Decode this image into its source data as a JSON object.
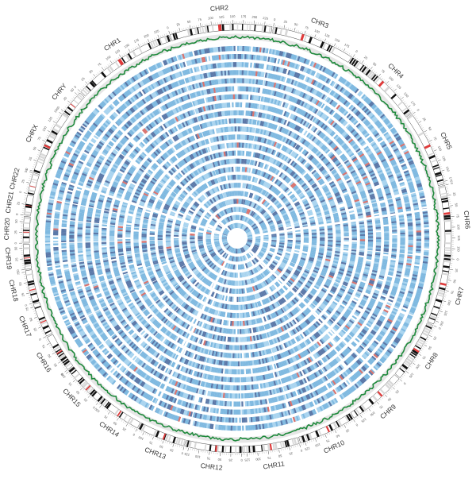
{
  "figure": {
    "type": "circos",
    "chromosomes": [
      {
        "name": "CHR1",
        "label": "CHR1",
        "size": 249,
        "ticks": [
          "0",
          "25",
          "50",
          "75",
          "100",
          "125",
          "150",
          "175",
          "200",
          "225"
        ]
      },
      {
        "name": "CHR2",
        "label": "CHR2",
        "size": 243,
        "ticks": [
          "0",
          "25",
          "50",
          "75",
          "100",
          "125",
          "150",
          "175",
          "200",
          "225"
        ]
      },
      {
        "name": "CHR3",
        "label": "CHR3",
        "size": 198,
        "ticks": [
          "0",
          "25",
          "50",
          "75",
          "100",
          "125",
          "150",
          "175"
        ]
      },
      {
        "name": "CHR4",
        "label": "CHR4",
        "size": 191,
        "ticks": [
          "0",
          "25",
          "50",
          "75",
          "100",
          "125",
          "150",
          "175"
        ]
      },
      {
        "name": "CHR5",
        "label": "CHR5",
        "size": 181,
        "ticks": [
          "0",
          "25",
          "50",
          "75",
          "100",
          "125",
          "150",
          "175"
        ]
      },
      {
        "name": "CHR6",
        "label": "CHR6",
        "size": 171,
        "ticks": [
          "0",
          "25",
          "50",
          "75",
          "100",
          "125",
          "150"
        ]
      },
      {
        "name": "CHR7",
        "label": "CHR7",
        "size": 159,
        "ticks": [
          "0",
          "25",
          "50",
          "75",
          "100",
          "125",
          "150"
        ]
      },
      {
        "name": "CHR8",
        "label": "CHR8",
        "size": 146,
        "ticks": [
          "0",
          "25",
          "50",
          "75",
          "100",
          "125"
        ]
      },
      {
        "name": "CHR9",
        "label": "CHR9",
        "size": 141,
        "ticks": [
          "0",
          "25",
          "50",
          "75",
          "100",
          "125"
        ]
      },
      {
        "name": "CHR10",
        "label": "CHR10",
        "size": 136,
        "ticks": [
          "0",
          "25",
          "50",
          "75",
          "100",
          "125"
        ]
      },
      {
        "name": "CHR11",
        "label": "CHR11",
        "size": 135,
        "ticks": [
          "0",
          "25",
          "50",
          "75",
          "100",
          "125"
        ]
      },
      {
        "name": "CHR12",
        "label": "CHR12",
        "size": 133,
        "ticks": [
          "0",
          "25",
          "50",
          "75",
          "100",
          "125"
        ]
      },
      {
        "name": "CHR13",
        "label": "CHR13",
        "size": 115,
        "ticks": [
          "0",
          "25",
          "50",
          "75",
          "100"
        ]
      },
      {
        "name": "CHR14",
        "label": "CHR14",
        "size": 107,
        "ticks": [
          "0",
          "25",
          "50",
          "75",
          "100"
        ]
      },
      {
        "name": "CHR15",
        "label": "CHR15",
        "size": 102,
        "ticks": [
          "0",
          "25",
          "50",
          "75",
          "100"
        ]
      },
      {
        "name": "CHR16",
        "label": "CHR16",
        "size": 90,
        "ticks": [
          "0",
          "25",
          "50",
          "75"
        ]
      },
      {
        "name": "CHR17",
        "label": "CHR17",
        "size": 81,
        "ticks": [
          "0",
          "25",
          "50",
          "75"
        ]
      },
      {
        "name": "CHR18",
        "label": "CHR18",
        "size": 78,
        "ticks": [
          "0",
          "25",
          "50",
          "75"
        ]
      },
      {
        "name": "CHR19",
        "label": "CHR19",
        "size": 59,
        "ticks": [
          "0",
          "25",
          "50"
        ]
      },
      {
        "name": "CHR20",
        "label": "CHR20",
        "size": 63,
        "ticks": [
          "0",
          "25",
          "50"
        ]
      },
      {
        "name": "CHR21",
        "label": "CHR21",
        "size": 48,
        "ticks": [
          "0",
          "25"
        ]
      },
      {
        "name": "CHR22",
        "label": "CHR22",
        "size": 51,
        "ticks": [
          "0",
          "25",
          "50"
        ]
      },
      {
        "name": "CHRX",
        "label": "CHRX",
        "size": 155,
        "ticks": [
          "0",
          "25",
          "50",
          "75",
          "100",
          "125",
          "150"
        ]
      },
      {
        "name": "CHRY",
        "label": "CHRY",
        "size": 57,
        "ticks": [
          "0",
          "25",
          "50"
        ]
      }
    ],
    "colors": {
      "heatmap_base": "#7fb9e0",
      "heatmap_dark": "#5b78a8",
      "heatmap_light": "#a9d4ef",
      "heatmap_mark": "#d9736e",
      "line_track": "#1f8a3c",
      "ideogram_band": "#111111",
      "ideogram_light": "#d9d9d9",
      "centromere": "#e03a3a"
    }
  }
}
